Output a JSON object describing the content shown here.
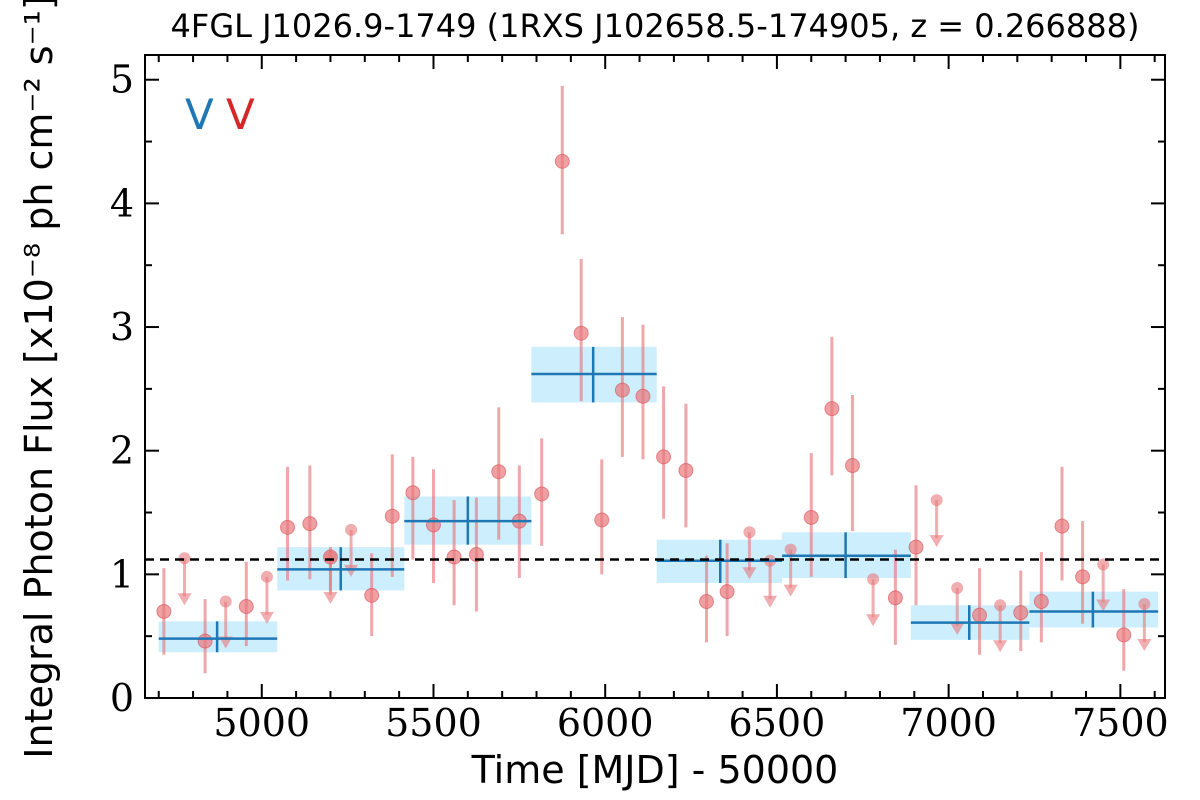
{
  "chart_data": {
    "type": "scatter",
    "title": "4FGL J1026.9-1749 (1RXS J102658.5-174905, z = 0.266888)",
    "xlabel": "Time [MJD] - 50000",
    "ylabel": "Integral Photon Flux [x10⁻⁸ ph cm⁻² s⁻¹]",
    "xlim": [
      4660,
      7630
    ],
    "ylim": [
      0,
      5.2
    ],
    "x_ticks": [
      5000,
      5500,
      6000,
      6500,
      7000,
      7500
    ],
    "y_ticks": [
      0,
      1,
      2,
      3,
      4,
      5
    ],
    "x_tick_labels": [
      "5000",
      "5500",
      "6000",
      "6500",
      "7000",
      "7500"
    ],
    "y_tick_labels": [
      "0",
      "1",
      "2",
      "3",
      "4",
      "5"
    ],
    "markers": [
      {
        "text": "V",
        "color": "#1f77b4"
      },
      {
        "text": "V",
        "color": "#d62728"
      }
    ],
    "mean_flux": 1.12,
    "colors": {
      "fine_bins": "#e8787c",
      "coarse_bins": "#1f77b4",
      "coarse_band": "#cdeefd",
      "mean_line": "#000000"
    },
    "series": [
      {
        "name": "",
        "kind": "fine-bins",
        "points": [
          {
            "x": 4715,
            "y": 0.7,
            "ylo": 0.35,
            "yhi": 1.05
          },
          {
            "x": 4835,
            "y": 0.46,
            "ylo": 0.2,
            "yhi": 0.8
          },
          {
            "x": 4955,
            "y": 0.74,
            "ylo": 0.42,
            "yhi": 1.1
          },
          {
            "x": 5075,
            "y": 1.38,
            "ylo": 0.95,
            "yhi": 1.87
          },
          {
            "x": 5140,
            "y": 1.41,
            "ylo": 0.96,
            "yhi": 1.88
          },
          {
            "x": 5200,
            "y": 1.14,
            "ylo": 0.86,
            "yhi": 1.22
          },
          {
            "x": 5320,
            "y": 0.83,
            "ylo": 0.5,
            "yhi": 1.17
          },
          {
            "x": 5380,
            "y": 1.47,
            "ylo": 0.98,
            "yhi": 1.97
          },
          {
            "x": 5440,
            "y": 1.66,
            "ylo": 1.12,
            "yhi": 1.95
          },
          {
            "x": 5500,
            "y": 1.4,
            "ylo": 0.93,
            "yhi": 1.85
          },
          {
            "x": 5560,
            "y": 1.14,
            "ylo": 0.75,
            "yhi": 1.6
          },
          {
            "x": 5625,
            "y": 1.16,
            "ylo": 0.7,
            "yhi": 1.62
          },
          {
            "x": 5690,
            "y": 1.83,
            "ylo": 1.28,
            "yhi": 2.35
          },
          {
            "x": 5750,
            "y": 1.43,
            "ylo": 0.97,
            "yhi": 1.88
          },
          {
            "x": 5815,
            "y": 1.65,
            "ylo": 1.23,
            "yhi": 2.1
          },
          {
            "x": 5875,
            "y": 4.34,
            "ylo": 3.75,
            "yhi": 4.95
          },
          {
            "x": 5930,
            "y": 2.95,
            "ylo": 2.4,
            "yhi": 3.55
          },
          {
            "x": 5990,
            "y": 1.44,
            "ylo": 1.0,
            "yhi": 1.93
          },
          {
            "x": 6050,
            "y": 2.49,
            "ylo": 1.95,
            "yhi": 3.08
          },
          {
            "x": 6110,
            "y": 2.44,
            "ylo": 1.93,
            "yhi": 3.02
          },
          {
            "x": 6170,
            "y": 1.95,
            "ylo": 1.45,
            "yhi": 2.52
          },
          {
            "x": 6235,
            "y": 1.84,
            "ylo": 1.38,
            "yhi": 2.38
          },
          {
            "x": 6295,
            "y": 0.78,
            "ylo": 0.45,
            "yhi": 1.15
          },
          {
            "x": 6355,
            "y": 0.86,
            "ylo": 0.5,
            "yhi": 1.25
          },
          {
            "x": 6600,
            "y": 1.46,
            "ylo": 0.98,
            "yhi": 1.98
          },
          {
            "x": 6660,
            "y": 2.34,
            "ylo": 1.8,
            "yhi": 2.92
          },
          {
            "x": 6720,
            "y": 1.88,
            "ylo": 1.35,
            "yhi": 2.45
          },
          {
            "x": 6845,
            "y": 0.81,
            "ylo": 0.43,
            "yhi": 1.2
          },
          {
            "x": 6905,
            "y": 1.22,
            "ylo": 0.75,
            "yhi": 1.72
          },
          {
            "x": 7090,
            "y": 0.67,
            "ylo": 0.35,
            "yhi": 1.05
          },
          {
            "x": 7210,
            "y": 0.69,
            "ylo": 0.38,
            "yhi": 1.03
          },
          {
            "x": 7270,
            "y": 0.78,
            "ylo": 0.45,
            "yhi": 1.18
          },
          {
            "x": 7330,
            "y": 1.39,
            "ylo": 0.95,
            "yhi": 1.87
          },
          {
            "x": 7390,
            "y": 0.98,
            "ylo": 0.6,
            "yhi": 1.43
          },
          {
            "x": 7510,
            "y": 0.51,
            "ylo": 0.22,
            "yhi": 0.88
          }
        ],
        "upper_limits": [
          {
            "x": 4775,
            "y": 1.13
          },
          {
            "x": 4895,
            "y": 0.78
          },
          {
            "x": 5015,
            "y": 0.98
          },
          {
            "x": 5200,
            "y": 1.14
          },
          {
            "x": 5260,
            "y": 1.36
          },
          {
            "x": 6420,
            "y": 1.34
          },
          {
            "x": 6480,
            "y": 1.11
          },
          {
            "x": 6540,
            "y": 1.2
          },
          {
            "x": 6780,
            "y": 0.96
          },
          {
            "x": 6965,
            "y": 1.6
          },
          {
            "x": 7025,
            "y": 0.89
          },
          {
            "x": 7150,
            "y": 0.75
          },
          {
            "x": 7450,
            "y": 1.08
          },
          {
            "x": 7570,
            "y": 0.76
          }
        ]
      },
      {
        "name": "",
        "kind": "coarse-bins",
        "points": [
          {
            "x0": 4700,
            "x1": 5045,
            "xc": 4870,
            "y": 0.48,
            "ylo": 0.37,
            "yhi": 0.62
          },
          {
            "x0": 5045,
            "x1": 5415,
            "xc": 5230,
            "y": 1.04,
            "ylo": 0.87,
            "yhi": 1.22
          },
          {
            "x0": 5415,
            "x1": 5785,
            "xc": 5600,
            "y": 1.43,
            "ylo": 1.24,
            "yhi": 1.63
          },
          {
            "x0": 5785,
            "x1": 6150,
            "xc": 5965,
            "y": 2.62,
            "ylo": 2.39,
            "yhi": 2.84
          },
          {
            "x0": 6150,
            "x1": 6515,
            "xc": 6335,
            "y": 1.11,
            "ylo": 0.93,
            "yhi": 1.28
          },
          {
            "x0": 6515,
            "x1": 6890,
            "xc": 6700,
            "y": 1.15,
            "ylo": 0.97,
            "yhi": 1.34
          },
          {
            "x0": 6890,
            "x1": 7235,
            "xc": 7060,
            "y": 0.61,
            "ylo": 0.47,
            "yhi": 0.75
          },
          {
            "x0": 7235,
            "x1": 7610,
            "xc": 7420,
            "y": 0.7,
            "ylo": 0.57,
            "yhi": 0.86
          }
        ]
      }
    ]
  }
}
